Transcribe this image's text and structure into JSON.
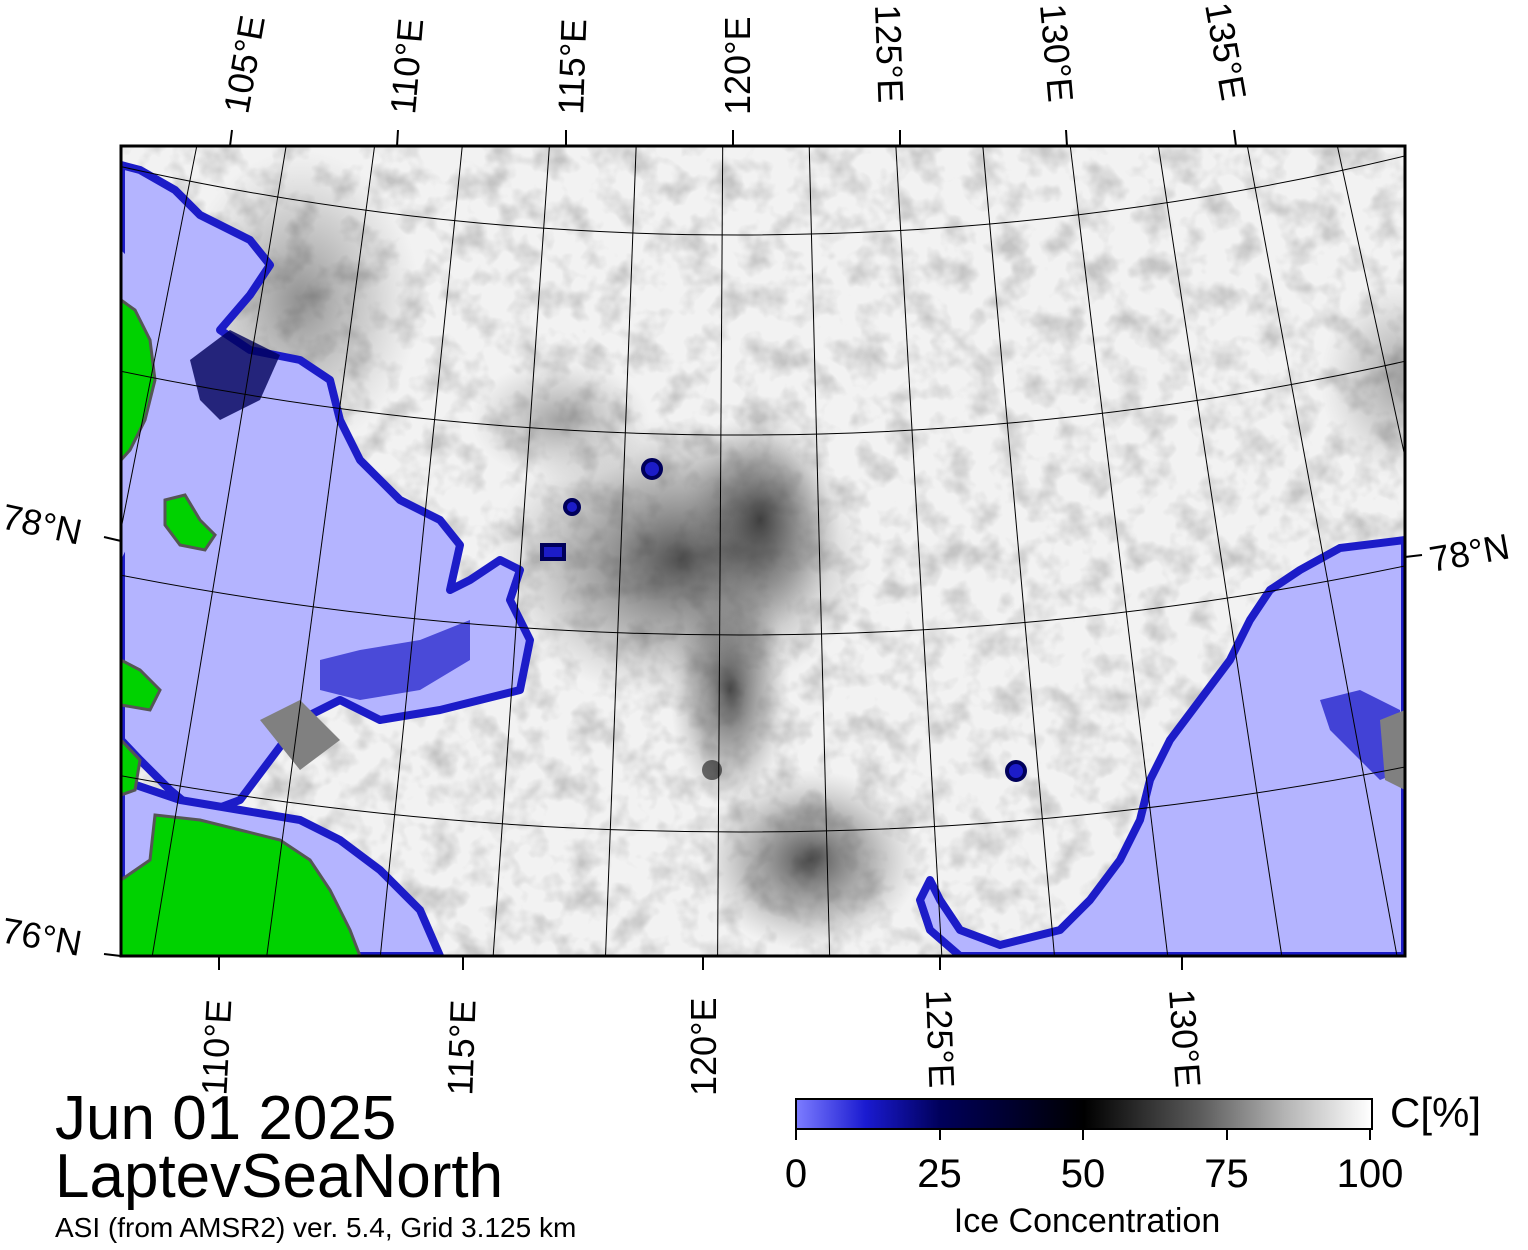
{
  "map": {
    "top_lon_labels": [
      "105°E",
      "110°E",
      "115°E",
      "120°E",
      "125°E",
      "130°E",
      "135°E"
    ],
    "bottom_lon_labels": [
      "110°E",
      "115°E",
      "120°E",
      "125°E",
      "130°E"
    ],
    "left_lat_labels": [
      "78°N",
      "76°N"
    ],
    "right_lat_labels": [
      "78°N"
    ],
    "colors": {
      "land": "#00d200",
      "open_water": "#b4b4ff",
      "water_edge": "#1c1cc8",
      "ice_high": "#ffffff",
      "ice_mid": "#808080",
      "frame": "#000000"
    }
  },
  "date": "Jun 01 2025",
  "region": "LaptevSeaNorth",
  "product": "ASI (from AMSR2) ver. 5.4,  Grid 3.125 km",
  "colorbar": {
    "label": "Ice Concentration",
    "unit": "C[%]",
    "ticks": [
      "0",
      "25",
      "50",
      "75",
      "100"
    ],
    "tick_values": [
      0,
      25,
      50,
      75,
      100
    ],
    "min": 0,
    "max": 100
  }
}
